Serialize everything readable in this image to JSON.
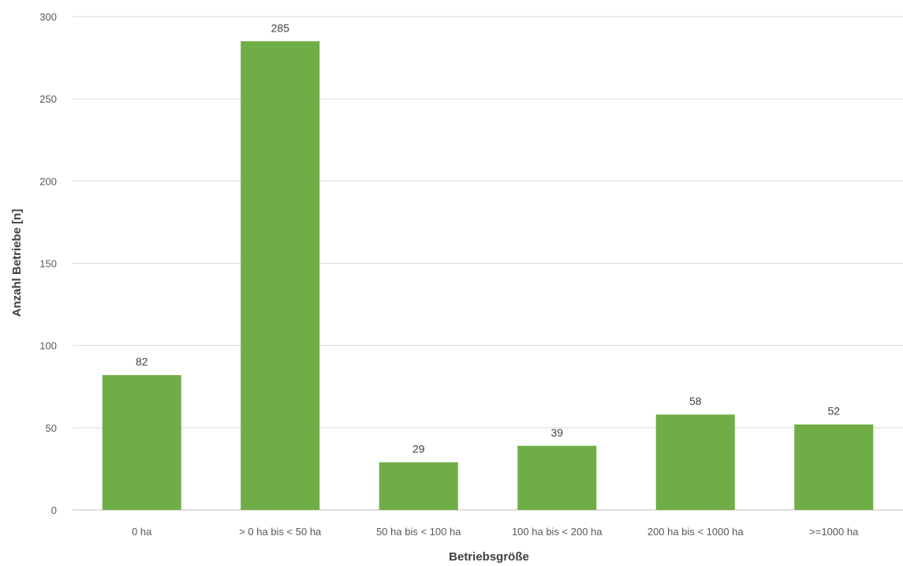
{
  "chart_data": {
    "type": "bar",
    "categories": [
      "0 ha",
      "> 0 ha bis < 50 ha",
      "50 ha bis < 100 ha",
      "100 ha bis < 200 ha",
      "200 ha bis < 1000 ha",
      ">=1000 ha"
    ],
    "values": [
      82,
      285,
      29,
      39,
      58,
      52
    ],
    "title": "",
    "xlabel": "Betriebsgröße",
    "ylabel": "Anzahl Betriebe [n]",
    "ylim": [
      0,
      300
    ],
    "yticks": [
      0,
      50,
      100,
      150,
      200,
      250,
      300
    ],
    "grid": true,
    "legend": "none",
    "bar_color": "#70ad47"
  }
}
